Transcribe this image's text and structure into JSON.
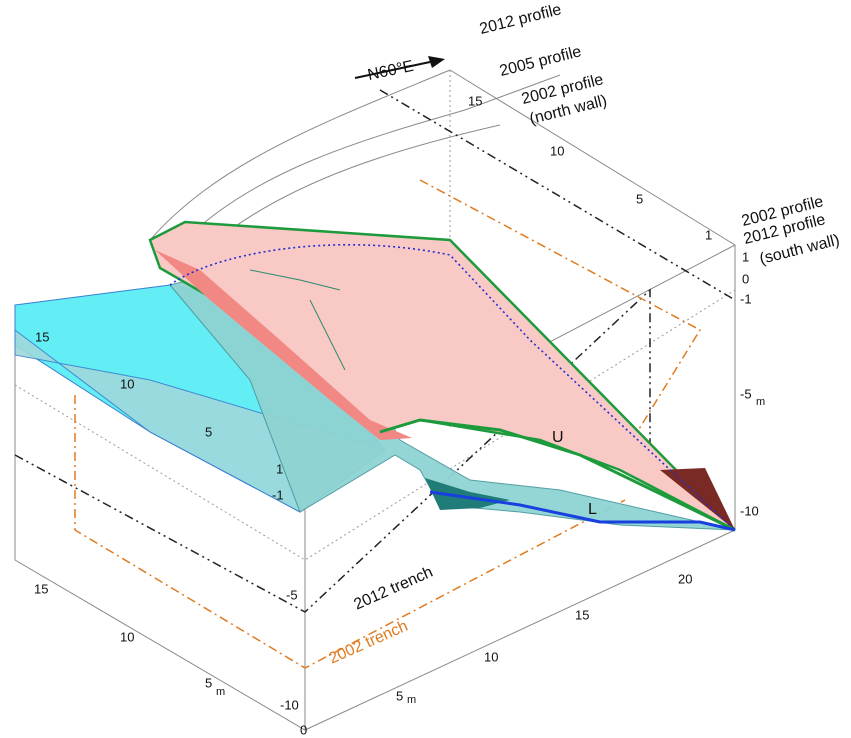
{
  "top_labels": {
    "profile_2012": "2012 profile",
    "profile_2005": "2005 profile",
    "profile_2002_north": [
      "2002 profile",
      "(north wall)"
    ],
    "direction": "N60°E"
  },
  "right_labels": [
    "2002 profile",
    "2012 profile",
    "(south wall)"
  ],
  "surface_labels": {
    "upper": "U",
    "lower": "L"
  },
  "trench_labels": {
    "trench_2012": "2012 trench",
    "trench_2002": "2002 trench"
  },
  "axes": {
    "top_back": [
      "15",
      "10",
      "5",
      "1"
    ],
    "right_vertical": [
      "1",
      "0",
      "-1",
      "-5",
      "-10"
    ],
    "right_unit_vertical": "m",
    "inner_slope": [
      "15",
      "10",
      "5"
    ],
    "inner_vertical": [
      "1",
      "-1"
    ],
    "front_vertical": [
      "-5",
      "-10",
      "0"
    ],
    "left_bottom": [
      "15",
      "10",
      "5"
    ],
    "left_unit": "m",
    "right_bottom": [
      "5",
      "10",
      "15",
      "20"
    ],
    "right_unit": "m"
  }
}
